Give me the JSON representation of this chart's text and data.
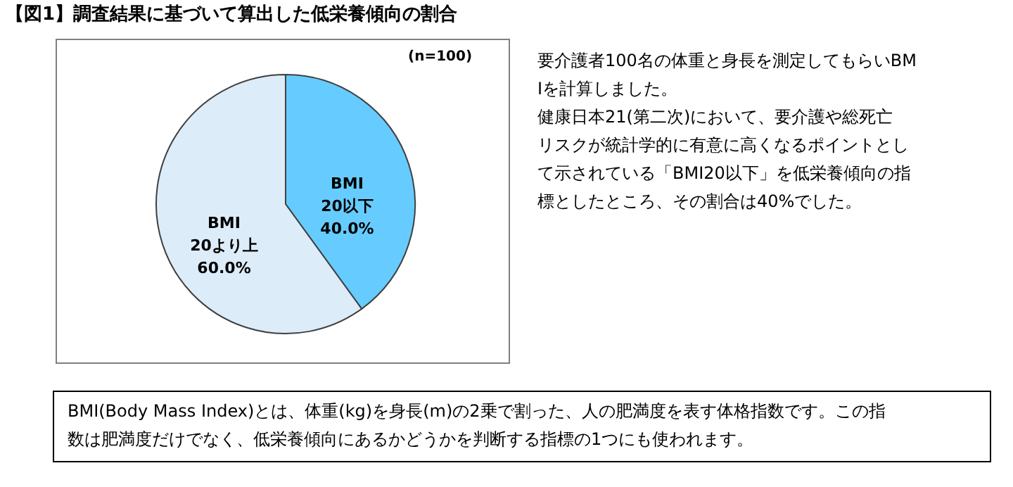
{
  "chart_data": {
    "type": "pie",
    "title": "【図1】調査結果に基づいて算出した低栄養傾向の割合",
    "categories": [
      "BMI 20以下",
      "BMI 20より上"
    ],
    "values": [
      40.0,
      60.0
    ],
    "colors": [
      "#66ccff",
      "#dcecf8"
    ],
    "value_labels": [
      "40.0%",
      "60.0%"
    ],
    "annotations": [
      "(n=100)",
      "要介護者100名の体重と身長を測定してもらいBMIを計算しました。",
      "健康日本21(第二次)において、要介護や総死亡リスクが統計学的に有意に高くなるポイントとして示されている「BMI20以下」を低栄養傾向の指標としたところ、その割合は40%でした。",
      "BMI(Body Mass Index)とは、体重(kg)を身長(m)の2乗で割った、人の肥満度を表す体格指数です。この指数は肥満度だけでなく、低栄養傾向にあるかどうかを判断する指標の1つにも使われます。"
    ]
  }
}
